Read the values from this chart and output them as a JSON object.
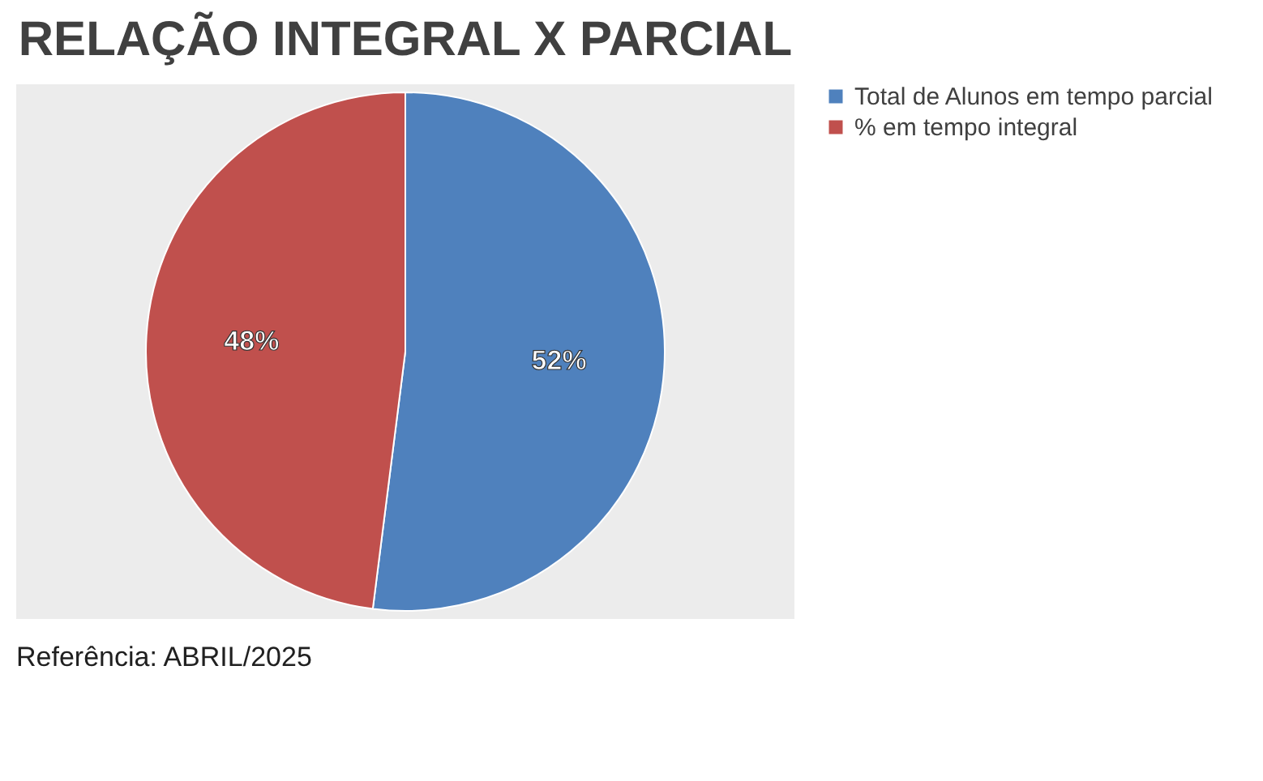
{
  "chart_data": {
    "type": "pie",
    "title": "RELAÇÃO INTEGRAL X PARCIAL",
    "categories": [
      "Total de Alunos em tempo parcial",
      "% em tempo integral"
    ],
    "values": [
      52,
      48
    ],
    "colors": [
      "#4f81bd",
      "#c0504d"
    ],
    "value_labels": [
      "52%",
      "48%"
    ],
    "legend": "right",
    "annotations": [
      "Referência: ABRIL/2025"
    ]
  }
}
